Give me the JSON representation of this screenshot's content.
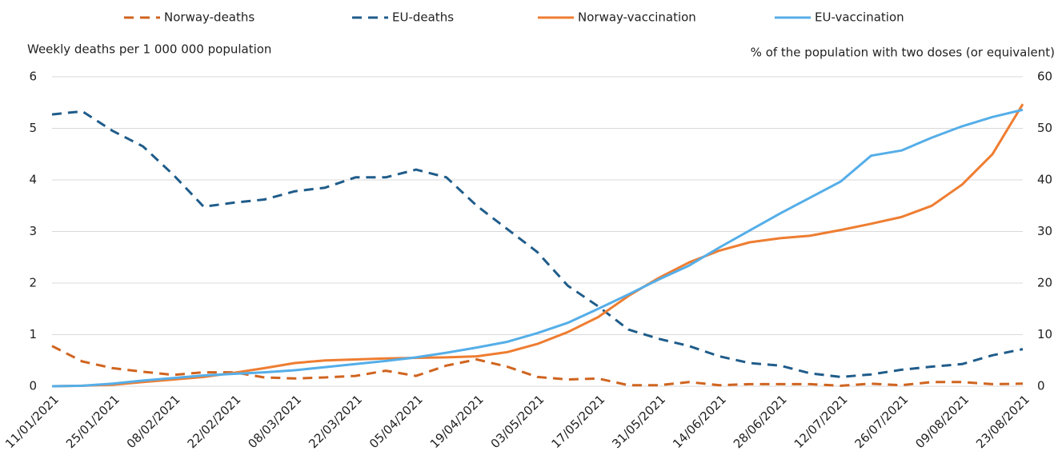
{
  "chart_data": {
    "type": "line",
    "y_label": "Weekly deaths per 1 000 000 population",
    "y2_label": "% of the population with two doses (or equivalent)",
    "categories": [
      "11/01/2021",
      null,
      "25/01/2021",
      null,
      "08/02/2021",
      null,
      "22/02/2021",
      null,
      "08/03/2021",
      null,
      "22/03/2021",
      null,
      "05/04/2021",
      null,
      "19/04/2021",
      null,
      "03/05/2021",
      null,
      "17/05/2021",
      null,
      "31/05/2021",
      null,
      "14/06/2021",
      null,
      "28/06/2021",
      null,
      "12/07/2021",
      null,
      "26/07/2021",
      null,
      "09/08/2021",
      null,
      "23/08/2021"
    ],
    "series": [
      {
        "name": "Norway-deaths",
        "color": "#d0641f",
        "dashed": true,
        "axis": "y",
        "values": [
          0.78,
          0.48,
          0.35,
          0.28,
          0.22,
          0.27,
          0.27,
          0.17,
          0.15,
          0.17,
          0.2,
          0.3,
          0.2,
          0.4,
          0.52,
          0.38,
          0.18,
          0.13,
          0.15,
          0.02,
          0.02,
          0.08,
          0.02,
          0.04,
          0.04,
          0.04,
          0.01,
          0.05,
          0.02,
          0.08,
          0.08,
          0.04,
          0.05
        ]
      },
      {
        "name": "EU-deaths",
        "color": "#1f5c8a",
        "dashed": true,
        "axis": "y",
        "values": [
          5.27,
          5.33,
          4.95,
          4.65,
          4.1,
          3.48,
          3.56,
          3.62,
          3.78,
          3.85,
          4.05,
          4.05,
          4.2,
          4.05,
          3.5,
          3.05,
          2.6,
          1.95,
          1.55,
          1.1,
          0.92,
          0.78,
          0.58,
          0.45,
          0.4,
          0.25,
          0.18,
          0.23,
          0.32,
          0.38,
          0.43,
          0.6,
          0.72
        ]
      },
      {
        "name": "Norway-vaccination",
        "color": "#ee7d31",
        "dashed": false,
        "axis": "y2",
        "values": [
          0,
          0.1,
          0.3,
          0.8,
          1.3,
          1.8,
          2.6,
          3.5,
          4.5,
          5.0,
          5.2,
          5.4,
          5.5,
          5.6,
          5.8,
          6.6,
          8.2,
          10.5,
          13.4,
          17.5,
          21,
          24,
          26.3,
          27.9,
          28.7,
          29.2,
          30.3,
          31.5,
          32.8,
          35,
          39.1,
          45,
          54.7
        ]
      },
      {
        "name": "EU-vaccination",
        "color": "#55aee8",
        "dashed": false,
        "axis": "y2",
        "values": [
          0,
          0.1,
          0.5,
          1.1,
          1.6,
          2.1,
          2.4,
          2.7,
          3.1,
          3.7,
          4.3,
          4.9,
          5.6,
          6.5,
          7.5,
          8.6,
          10.3,
          12.3,
          15,
          17.8,
          20.7,
          23.4,
          26.9,
          30.2,
          33.5,
          36.6,
          39.7,
          44.7,
          45.7,
          48.2,
          50.4,
          52.2,
          53.6
        ]
      }
    ],
    "ylim": [
      0,
      6
    ],
    "yticks": [
      0,
      1,
      2,
      3,
      4,
      5,
      6
    ],
    "y2lim": [
      0,
      60
    ],
    "y2ticks": [
      0,
      10,
      20,
      30,
      40,
      50,
      60
    ],
    "grid": true,
    "legend": "top"
  }
}
